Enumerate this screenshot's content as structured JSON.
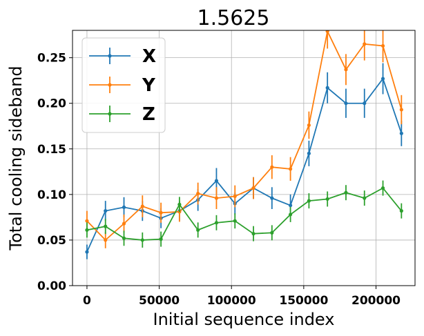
{
  "chart_data": {
    "type": "line",
    "title": "1.5625",
    "xlabel": "Initial sequence index",
    "ylabel": "Total cooling sideband",
    "xlim": [
      -10000,
      227000
    ],
    "ylim": [
      0,
      0.28
    ],
    "xticks": [
      0,
      50000,
      100000,
      150000,
      200000
    ],
    "xtick_labels": [
      "0",
      "50000",
      "100000",
      "150000",
      "200000"
    ],
    "yticks": [
      0.0,
      0.05,
      0.1,
      0.15,
      0.2,
      0.25
    ],
    "ytick_labels": [
      "0.00",
      "0.05",
      "0.10",
      "0.15",
      "0.20",
      "0.25"
    ],
    "grid": true,
    "legend_position": "top-left",
    "x": [
      0,
      12800,
      25600,
      38400,
      51200,
      64000,
      76800,
      89600,
      102400,
      115200,
      128000,
      140800,
      153600,
      166400,
      179200,
      192000,
      204800,
      217600
    ],
    "series": [
      {
        "name": "X",
        "color": "#1f77b4",
        "values": [
          0.037,
          0.082,
          0.086,
          0.082,
          0.074,
          0.082,
          0.094,
          0.115,
          0.09,
          0.107,
          0.096,
          0.088,
          0.145,
          0.217,
          0.2,
          0.2,
          0.227,
          0.167
        ],
        "errors": [
          0.008,
          0.011,
          0.011,
          0.011,
          0.011,
          0.011,
          0.012,
          0.014,
          0.012,
          0.012,
          0.012,
          0.012,
          0.014,
          0.017,
          0.016,
          0.016,
          0.017,
          0.014
        ]
      },
      {
        "name": "Y",
        "color": "#ff7f0e",
        "values": [
          0.071,
          0.05,
          0.068,
          0.087,
          0.08,
          0.081,
          0.101,
          0.096,
          0.098,
          0.107,
          0.13,
          0.128,
          0.176,
          0.279,
          0.237,
          0.265,
          0.263,
          0.193
        ],
        "errors": [
          0.011,
          0.009,
          0.01,
          0.012,
          0.011,
          0.011,
          0.012,
          0.012,
          0.012,
          0.012,
          0.013,
          0.013,
          0.015,
          0.019,
          0.017,
          0.018,
          0.018,
          0.016
        ]
      },
      {
        "name": "Z",
        "color": "#2ca02c",
        "values": [
          0.061,
          0.065,
          0.052,
          0.05,
          0.051,
          0.089,
          0.061,
          0.069,
          0.071,
          0.057,
          0.058,
          0.078,
          0.093,
          0.095,
          0.102,
          0.096,
          0.107,
          0.082
        ]
      }
    ]
  }
}
